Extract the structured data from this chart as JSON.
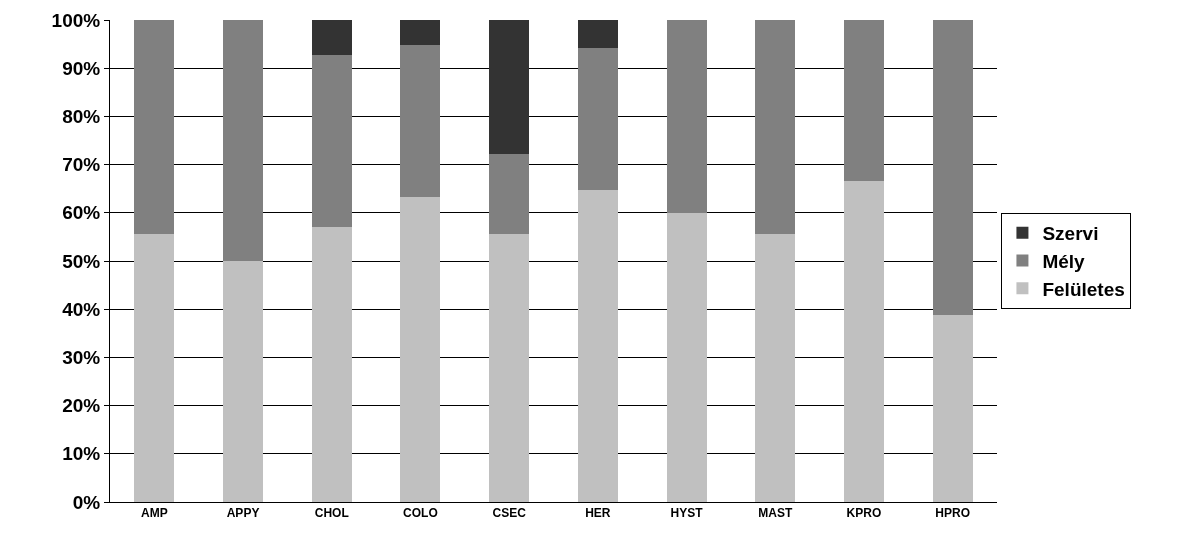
{
  "chart_data": {
    "type": "bar",
    "stacked": true,
    "categories": [
      "AMP",
      "APPY",
      "CHOL",
      "COLO",
      "CSEC",
      "HER",
      "HYST",
      "MAST",
      "KPRO",
      "HPRO"
    ],
    "series": [
      {
        "name": "Felületes",
        "color": "#c0c0c0",
        "values": [
          55.6,
          50,
          57.1,
          63.2,
          55.6,
          64.7,
          60,
          55.6,
          66.7,
          38.9
        ]
      },
      {
        "name": "Mély",
        "color": "#808080",
        "values": [
          44.4,
          50,
          35.7,
          31.6,
          16.7,
          29.4,
          40,
          44.4,
          33.3,
          61.1
        ]
      },
      {
        "name": "Szervi",
        "color": "#333333",
        "values": [
          0,
          0,
          7.1,
          5.3,
          27.8,
          5.9,
          0,
          0,
          0,
          0
        ]
      }
    ],
    "ylim": [
      0,
      100
    ],
    "yticks": [
      {
        "value": 0,
        "label": "0%"
      },
      {
        "value": 10,
        "label": "10%"
      },
      {
        "value": 20,
        "label": "20%"
      },
      {
        "value": 30,
        "label": "30%"
      },
      {
        "value": 40,
        "label": "40%"
      },
      {
        "value": 50,
        "label": "50%"
      },
      {
        "value": 60,
        "label": "60%"
      },
      {
        "value": 70,
        "label": "70%"
      },
      {
        "value": 80,
        "label": "80%"
      },
      {
        "value": 90,
        "label": "90%"
      },
      {
        "value": 100,
        "label": "100%"
      }
    ],
    "grid": "y",
    "legend": "right"
  }
}
